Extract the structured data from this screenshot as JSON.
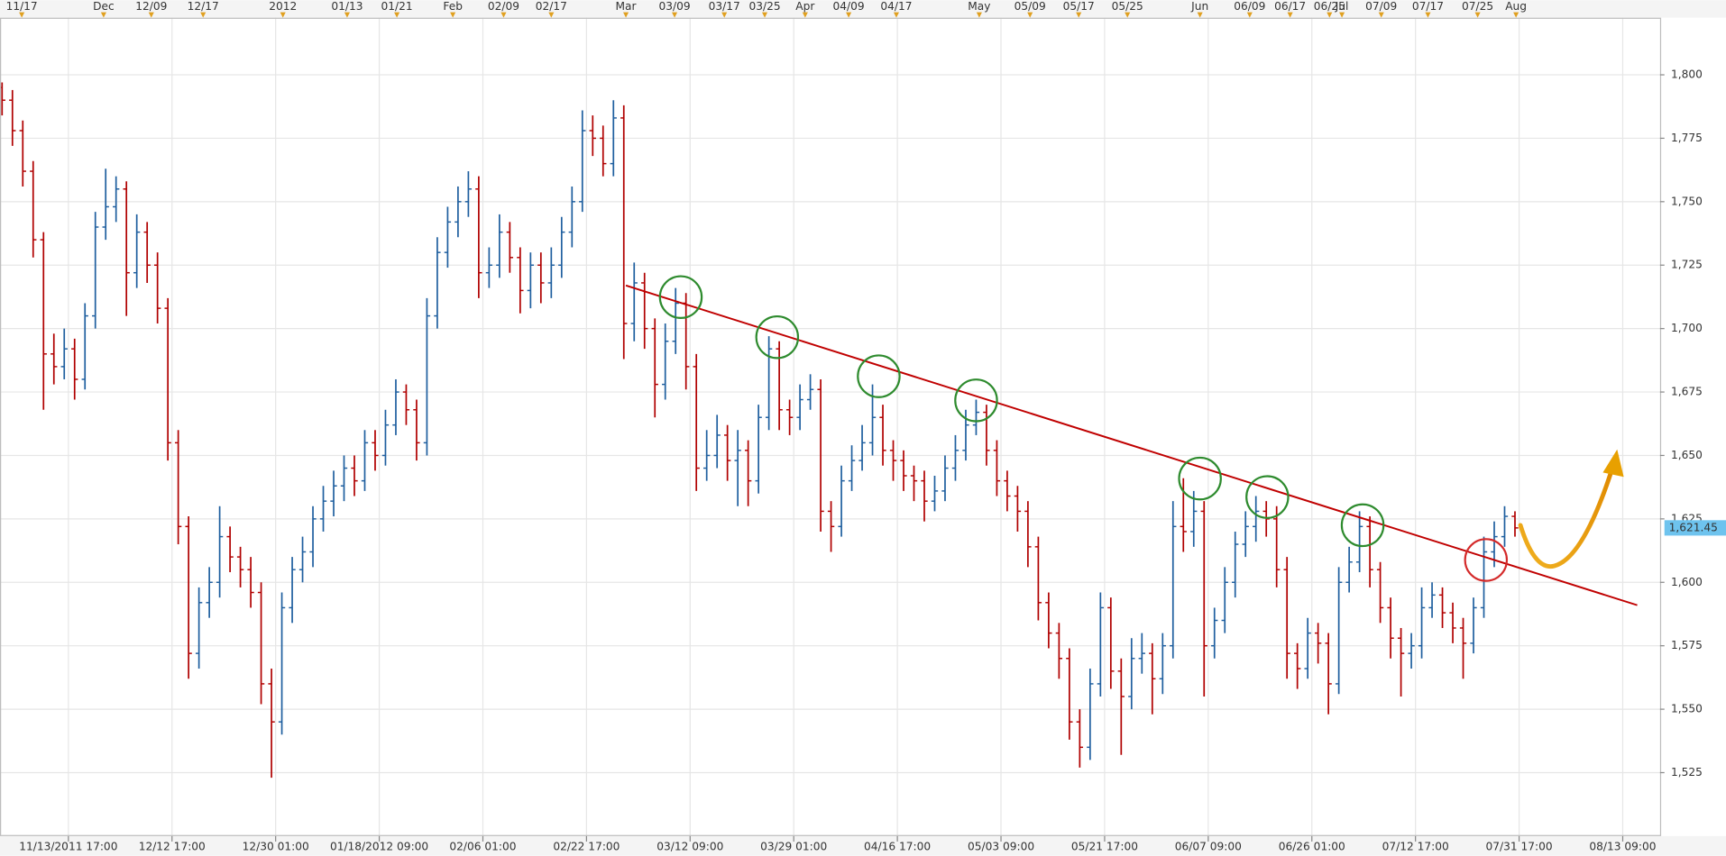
{
  "chart_data": {
    "type": "ohlc",
    "up_color": "#1f5f9f",
    "down_color": "#b00000",
    "grid": true,
    "xlim": [
      -0.2,
      160
    ],
    "ylim": [
      1500,
      1822.5
    ],
    "yticks": [
      {
        "value": 1525,
        "label": "1,525"
      },
      {
        "value": 1550,
        "label": "1,550"
      },
      {
        "value": 1575,
        "label": "1,575"
      },
      {
        "value": 1600,
        "label": "1,600"
      },
      {
        "value": 1625,
        "label": "1,625"
      },
      {
        "value": 1650,
        "label": "1,650"
      },
      {
        "value": 1675,
        "label": "1,675"
      },
      {
        "value": 1700,
        "label": "1,700"
      },
      {
        "value": 1725,
        "label": "1,725"
      },
      {
        "value": 1750,
        "label": "1,750"
      },
      {
        "value": 1775,
        "label": "1,775"
      },
      {
        "value": 1800,
        "label": "1,800"
      }
    ],
    "xticks": [
      {
        "value": 6.4,
        "label": "11/13/2011 17:00"
      },
      {
        "value": 16.4,
        "label": "12/12 17:00"
      },
      {
        "value": 26.4,
        "label": "12/30 01:00"
      },
      {
        "value": 36.4,
        "label": "01/18/2012 09:00"
      },
      {
        "value": 46.4,
        "label": "02/06 01:00"
      },
      {
        "value": 56.4,
        "label": "02/22 17:00"
      },
      {
        "value": 66.4,
        "label": "03/12 09:00"
      },
      {
        "value": 76.4,
        "label": "03/29 01:00"
      },
      {
        "value": 86.4,
        "label": "04/16 17:00"
      },
      {
        "value": 96.4,
        "label": "05/03 09:00"
      },
      {
        "value": 106.4,
        "label": "05/21 17:00"
      },
      {
        "value": 116.4,
        "label": "06/07 09:00"
      },
      {
        "value": 126.4,
        "label": "06/26 01:00"
      },
      {
        "value": 136.4,
        "label": "07/12 17:00"
      },
      {
        "value": 146.4,
        "label": "07/31 17:00"
      },
      {
        "value": 156.4,
        "label": "08/13 09:00"
      }
    ],
    "xticks_top": [
      {
        "value": 1.9,
        "label": "11/17"
      },
      {
        "value": 9.8,
        "label": "Dec"
      },
      {
        "value": 14.4,
        "label": "12/09"
      },
      {
        "value": 19.4,
        "label": "12/17"
      },
      {
        "value": 27.1,
        "label": "2012"
      },
      {
        "value": 33.3,
        "label": "01/13"
      },
      {
        "value": 38.1,
        "label": "01/21"
      },
      {
        "value": 43.5,
        "label": "Feb"
      },
      {
        "value": 48.4,
        "label": "02/09"
      },
      {
        "value": 53.0,
        "label": "02/17"
      },
      {
        "value": 60.2,
        "label": "Mar"
      },
      {
        "value": 64.9,
        "label": "03/09"
      },
      {
        "value": 69.7,
        "label": "03/17"
      },
      {
        "value": 73.6,
        "label": "03/25"
      },
      {
        "value": 77.5,
        "label": "Apr"
      },
      {
        "value": 81.7,
        "label": "04/09"
      },
      {
        "value": 86.3,
        "label": "04/17"
      },
      {
        "value": 94.3,
        "label": "May"
      },
      {
        "value": 99.2,
        "label": "05/09"
      },
      {
        "value": 103.9,
        "label": "05/17"
      },
      {
        "value": 108.6,
        "label": "05/25"
      },
      {
        "value": 115.6,
        "label": "Jun"
      },
      {
        "value": 120.4,
        "label": "06/09"
      },
      {
        "value": 124.3,
        "label": "06/17"
      },
      {
        "value": 128.1,
        "label": "06/25"
      },
      {
        "value": 129.3,
        "label": "Jul"
      },
      {
        "value": 133.1,
        "label": "07/09"
      },
      {
        "value": 137.6,
        "label": "07/17"
      },
      {
        "value": 142.4,
        "label": "07/25"
      },
      {
        "value": 146.1,
        "label": "Aug"
      }
    ],
    "last_price": {
      "value": 1621.45,
      "label": "1,621.45"
    },
    "ohlc": [
      [
        1795,
        1797,
        1784,
        1790
      ],
      [
        1790,
        1794,
        1772,
        1778
      ],
      [
        1778,
        1782,
        1756,
        1762
      ],
      [
        1762,
        1766,
        1728,
        1735
      ],
      [
        1735,
        1738,
        1668,
        1690
      ],
      [
        1690,
        1698,
        1678,
        1685
      ],
      [
        1685,
        1700,
        1680,
        1692
      ],
      [
        1692,
        1696,
        1672,
        1680
      ],
      [
        1680,
        1710,
        1676,
        1705
      ],
      [
        1705,
        1746,
        1700,
        1740
      ],
      [
        1740,
        1763,
        1735,
        1748
      ],
      [
        1748,
        1760,
        1742,
        1755
      ],
      [
        1755,
        1758,
        1705,
        1722
      ],
      [
        1722,
        1745,
        1716,
        1738
      ],
      [
        1738,
        1742,
        1718,
        1725
      ],
      [
        1725,
        1730,
        1702,
        1708
      ],
      [
        1708,
        1712,
        1648,
        1655
      ],
      [
        1655,
        1660,
        1615,
        1622
      ],
      [
        1622,
        1626,
        1562,
        1572
      ],
      [
        1572,
        1598,
        1566,
        1592
      ],
      [
        1592,
        1606,
        1586,
        1600
      ],
      [
        1600,
        1630,
        1594,
        1618
      ],
      [
        1618,
        1622,
        1604,
        1610
      ],
      [
        1610,
        1614,
        1598,
        1605
      ],
      [
        1605,
        1610,
        1590,
        1596
      ],
      [
        1596,
        1600,
        1552,
        1560
      ],
      [
        1560,
        1566,
        1523,
        1545
      ],
      [
        1545,
        1596,
        1540,
        1590
      ],
      [
        1590,
        1610,
        1584,
        1605
      ],
      [
        1605,
        1618,
        1600,
        1612
      ],
      [
        1612,
        1630,
        1606,
        1625
      ],
      [
        1625,
        1638,
        1620,
        1632
      ],
      [
        1632,
        1644,
        1626,
        1638
      ],
      [
        1638,
        1650,
        1632,
        1645
      ],
      [
        1645,
        1650,
        1634,
        1640
      ],
      [
        1640,
        1660,
        1636,
        1655
      ],
      [
        1655,
        1660,
        1644,
        1650
      ],
      [
        1650,
        1668,
        1646,
        1662
      ],
      [
        1662,
        1680,
        1658,
        1675
      ],
      [
        1675,
        1678,
        1662,
        1668
      ],
      [
        1668,
        1672,
        1648,
        1655
      ],
      [
        1655,
        1712,
        1650,
        1705
      ],
      [
        1705,
        1736,
        1700,
        1730
      ],
      [
        1730,
        1748,
        1724,
        1742
      ],
      [
        1742,
        1756,
        1736,
        1750
      ],
      [
        1750,
        1762,
        1744,
        1755
      ],
      [
        1755,
        1760,
        1712,
        1722
      ],
      [
        1722,
        1732,
        1716,
        1725
      ],
      [
        1725,
        1745,
        1720,
        1738
      ],
      [
        1738,
        1742,
        1722,
        1728
      ],
      [
        1728,
        1732,
        1706,
        1715
      ],
      [
        1715,
        1730,
        1708,
        1725
      ],
      [
        1725,
        1730,
        1710,
        1718
      ],
      [
        1718,
        1732,
        1712,
        1725
      ],
      [
        1725,
        1744,
        1720,
        1738
      ],
      [
        1738,
        1756,
        1732,
        1750
      ],
      [
        1750,
        1786,
        1746,
        1778
      ],
      [
        1778,
        1784,
        1768,
        1775
      ],
      [
        1775,
        1780,
        1760,
        1765
      ],
      [
        1765,
        1790,
        1760,
        1783
      ],
      [
        1783,
        1788,
        1688,
        1702
      ],
      [
        1702,
        1726,
        1695,
        1718
      ],
      [
        1718,
        1722,
        1692,
        1700
      ],
      [
        1700,
        1704,
        1665,
        1678
      ],
      [
        1678,
        1702,
        1672,
        1695
      ],
      [
        1695,
        1716,
        1690,
        1710
      ],
      [
        1710,
        1714,
        1676,
        1685
      ],
      [
        1685,
        1690,
        1636,
        1645
      ],
      [
        1645,
        1660,
        1640,
        1650
      ],
      [
        1650,
        1666,
        1645,
        1658
      ],
      [
        1658,
        1662,
        1640,
        1648
      ],
      [
        1648,
        1660,
        1630,
        1652
      ],
      [
        1652,
        1656,
        1630,
        1640
      ],
      [
        1640,
        1670,
        1635,
        1665
      ],
      [
        1665,
        1697,
        1660,
        1692
      ],
      [
        1692,
        1695,
        1660,
        1668
      ],
      [
        1668,
        1672,
        1658,
        1665
      ],
      [
        1665,
        1678,
        1660,
        1672
      ],
      [
        1672,
        1682,
        1668,
        1676
      ],
      [
        1676,
        1680,
        1620,
        1628
      ],
      [
        1628,
        1632,
        1612,
        1622
      ],
      [
        1622,
        1646,
        1618,
        1640
      ],
      [
        1640,
        1654,
        1636,
        1648
      ],
      [
        1648,
        1662,
        1644,
        1655
      ],
      [
        1655,
        1678,
        1650,
        1665
      ],
      [
        1665,
        1670,
        1646,
        1652
      ],
      [
        1652,
        1656,
        1640,
        1648
      ],
      [
        1648,
        1652,
        1636,
        1642
      ],
      [
        1642,
        1646,
        1632,
        1640
      ],
      [
        1640,
        1644,
        1624,
        1632
      ],
      [
        1632,
        1642,
        1628,
        1636
      ],
      [
        1636,
        1650,
        1632,
        1645
      ],
      [
        1645,
        1658,
        1640,
        1652
      ],
      [
        1652,
        1668,
        1648,
        1662
      ],
      [
        1662,
        1672,
        1658,
        1667
      ],
      [
        1667,
        1670,
        1646,
        1652
      ],
      [
        1652,
        1656,
        1634,
        1640
      ],
      [
        1640,
        1644,
        1628,
        1634
      ],
      [
        1634,
        1638,
        1620,
        1628
      ],
      [
        1628,
        1632,
        1606,
        1614
      ],
      [
        1614,
        1618,
        1585,
        1592
      ],
      [
        1592,
        1596,
        1574,
        1580
      ],
      [
        1580,
        1584,
        1562,
        1570
      ],
      [
        1570,
        1574,
        1538,
        1545
      ],
      [
        1545,
        1550,
        1527,
        1535
      ],
      [
        1535,
        1566,
        1530,
        1560
      ],
      [
        1560,
        1596,
        1555,
        1590
      ],
      [
        1590,
        1594,
        1558,
        1565
      ],
      [
        1565,
        1570,
        1532,
        1555
      ],
      [
        1555,
        1578,
        1550,
        1570
      ],
      [
        1570,
        1580,
        1564,
        1572
      ],
      [
        1572,
        1576,
        1548,
        1562
      ],
      [
        1562,
        1580,
        1556,
        1575
      ],
      [
        1575,
        1632,
        1570,
        1622
      ],
      [
        1622,
        1641,
        1612,
        1620
      ],
      [
        1620,
        1636,
        1614,
        1628
      ],
      [
        1628,
        1632,
        1555,
        1575
      ],
      [
        1575,
        1590,
        1570,
        1585
      ],
      [
        1585,
        1606,
        1580,
        1600
      ],
      [
        1600,
        1620,
        1594,
        1615
      ],
      [
        1615,
        1628,
        1610,
        1622
      ],
      [
        1622,
        1634,
        1616,
        1628
      ],
      [
        1628,
        1632,
        1618,
        1625
      ],
      [
        1625,
        1630,
        1598,
        1605
      ],
      [
        1605,
        1610,
        1562,
        1572
      ],
      [
        1572,
        1576,
        1558,
        1566
      ],
      [
        1566,
        1586,
        1562,
        1580
      ],
      [
        1580,
        1584,
        1568,
        1576
      ],
      [
        1576,
        1580,
        1548,
        1560
      ],
      [
        1560,
        1606,
        1556,
        1600
      ],
      [
        1600,
        1614,
        1596,
        1608
      ],
      [
        1608,
        1628,
        1604,
        1622
      ],
      [
        1622,
        1626,
        1598,
        1605
      ],
      [
        1605,
        1608,
        1584,
        1590
      ],
      [
        1590,
        1594,
        1570,
        1578
      ],
      [
        1578,
        1582,
        1555,
        1572
      ],
      [
        1572,
        1580,
        1566,
        1575
      ],
      [
        1575,
        1598,
        1570,
        1590
      ],
      [
        1590,
        1600,
        1586,
        1595
      ],
      [
        1595,
        1598,
        1582,
        1588
      ],
      [
        1588,
        1592,
        1576,
        1582
      ],
      [
        1582,
        1586,
        1562,
        1576
      ],
      [
        1576,
        1594,
        1572,
        1590
      ],
      [
        1590,
        1618,
        1586,
        1612
      ],
      [
        1612,
        1624,
        1606,
        1618
      ],
      [
        1618,
        1630,
        1614,
        1626
      ],
      [
        1626,
        1628,
        1618,
        1621.45
      ]
    ],
    "trendline": {
      "x": [
        60.2,
        157.8
      ],
      "y": [
        1717,
        1591
      ],
      "color": "#c00000"
    },
    "markers": [
      {
        "x": 65.5,
        "y": 1712.4,
        "color": "#2e8b2e"
      },
      {
        "x": 74.8,
        "y": 1696.6,
        "color": "#2e8b2e"
      },
      {
        "x": 84.6,
        "y": 1681.2,
        "color": "#2e8b2e"
      },
      {
        "x": 94.0,
        "y": 1671.7,
        "color": "#2e8b2e"
      },
      {
        "x": 115.6,
        "y": 1640.9,
        "color": "#2e8b2e"
      },
      {
        "x": 122.1,
        "y": 1633.6,
        "color": "#2e8b2e"
      },
      {
        "x": 131.3,
        "y": 1622.5,
        "color": "#2e8b2e"
      },
      {
        "x": 143.2,
        "y": 1608.8,
        "color": "#d42a2a"
      }
    ]
  }
}
